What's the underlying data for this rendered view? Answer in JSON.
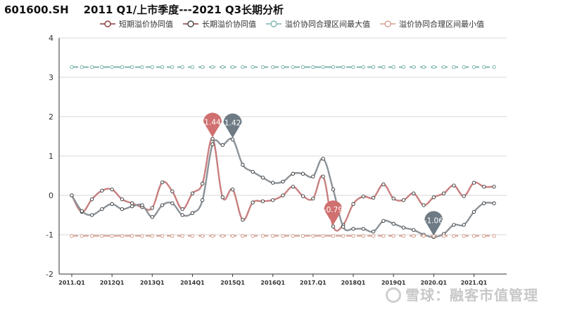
{
  "chart_data": {
    "type": "line",
    "title": "601600.SH    2011 Q1/上市季度---2021 Q3长期分析",
    "ylim": [
      -2,
      4
    ],
    "yticks": [
      -2,
      -1,
      0,
      1,
      2,
      3,
      4
    ],
    "grid": true,
    "legend_position": "top-center",
    "x": [
      "2011.Q1",
      "2011.Q2",
      "2011.Q3",
      "2011.Q4",
      "2012.Q1",
      "2012.Q2",
      "2012.Q3",
      "2012.Q4",
      "2013.Q1",
      "2013.Q2",
      "2013.Q3",
      "2013.Q4",
      "2014.Q1",
      "2014.Q2",
      "2014.Q3",
      "2014.Q4",
      "2015.Q1",
      "2015.Q2",
      "2015.Q3",
      "2015.Q4",
      "2016.Q1",
      "2016.Q2",
      "2016.Q3",
      "2016.Q4",
      "2017.Q1",
      "2017.Q2",
      "2017.Q3",
      "2017.Q4",
      "2018.Q1",
      "2018.Q2",
      "2018.Q3",
      "2018.Q4",
      "2019.Q1",
      "2019.Q2",
      "2019.Q3",
      "2019.Q4",
      "2020.Q1",
      "2020.Q2",
      "2020.Q3",
      "2020.Q4",
      "2021.Q1",
      "2021.Q2",
      "2021.Q3"
    ],
    "x_tick_labels": [
      {
        "index": 0,
        "label": "2011.Q1"
      },
      {
        "index": 4,
        "label": "2012Q1"
      },
      {
        "index": 8,
        "label": "2013Q1"
      },
      {
        "index": 12,
        "label": "2014Q1"
      },
      {
        "index": 16,
        "label": "2015Q1"
      },
      {
        "index": 20,
        "label": "2016Q1"
      },
      {
        "index": 24,
        "label": "2017.Q1"
      },
      {
        "index": 28,
        "label": "2018Q1"
      },
      {
        "index": 32,
        "label": "2019Q1"
      },
      {
        "index": 36,
        "label": "2020.Q1"
      },
      {
        "index": 40,
        "label": "2021.Q1"
      }
    ],
    "series": [
      {
        "name": "短期溢价协同值",
        "color": "#c87f7f",
        "values": [
          0.0,
          -0.42,
          -0.1,
          0.12,
          0.15,
          -0.1,
          -0.2,
          -0.3,
          -0.32,
          0.33,
          0.1,
          -0.35,
          0.05,
          0.3,
          1.44,
          -0.05,
          0.15,
          -0.62,
          -0.18,
          -0.15,
          -0.12,
          0.0,
          0.22,
          -0.02,
          -0.08,
          0.48,
          -0.79,
          -0.75,
          -0.22,
          -0.03,
          -0.06,
          0.28,
          -0.08,
          -0.12,
          0.05,
          -0.25,
          -0.05,
          0.05,
          0.25,
          -0.02,
          0.32,
          0.22,
          0.22
        ]
      },
      {
        "name": "长期溢价协同值",
        "color": "#8b9298",
        "values": [
          0.0,
          -0.4,
          -0.5,
          -0.35,
          -0.22,
          -0.35,
          -0.28,
          -0.25,
          -0.55,
          -0.25,
          -0.2,
          -0.5,
          -0.45,
          -0.12,
          1.3,
          1.28,
          1.42,
          0.78,
          0.6,
          0.45,
          0.32,
          0.35,
          0.55,
          0.55,
          0.48,
          0.93,
          0.15,
          -0.8,
          -0.85,
          -0.85,
          -0.92,
          -0.65,
          -0.72,
          -0.82,
          -0.88,
          -1.0,
          -1.06,
          -0.98,
          -0.75,
          -0.75,
          -0.42,
          -0.2,
          -0.2
        ]
      },
      {
        "name": "溢价协同合理区间最大值",
        "color": "#7fb4ae",
        "constant": 3.26
      },
      {
        "name": "溢价协同合理区间最小值",
        "color": "#d4a090",
        "constant": -1.03
      }
    ],
    "annotations": [
      {
        "series": 0,
        "index": 14,
        "label": "1.44",
        "color": "#d07070"
      },
      {
        "series": 1,
        "index": 16,
        "label": "1.42",
        "color": "#6e7b85"
      },
      {
        "series": 0,
        "index": 26,
        "label": "-0.79",
        "color": "#d07070"
      },
      {
        "series": 1,
        "index": 36,
        "label": "-1.06",
        "color": "#6e7b85"
      }
    ]
  },
  "watermark": "雪球：融客市值管理"
}
